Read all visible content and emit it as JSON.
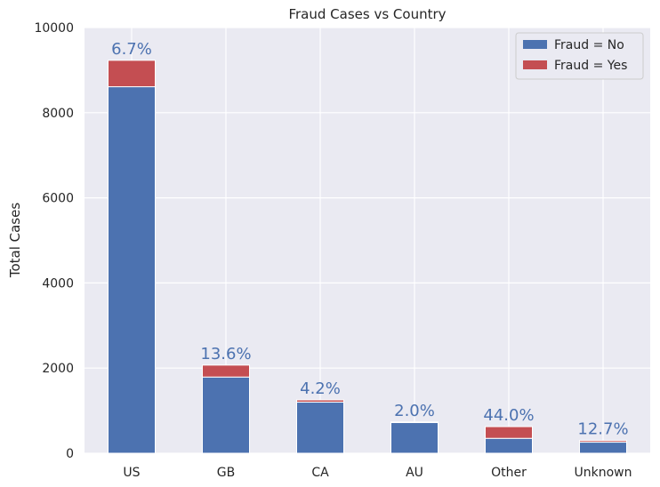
{
  "chart_data": {
    "type": "bar",
    "stacked": true,
    "title": "Fraud Cases vs Country",
    "xlabel": "",
    "ylabel": "Total Cases",
    "ylim": [
      0,
      10000
    ],
    "yticks": [
      "0",
      "2000",
      "4000",
      "6000",
      "8000",
      "10000"
    ],
    "categories": [
      "US",
      "GB",
      "CA",
      "AU",
      "Other",
      "Unknown"
    ],
    "series": [
      {
        "name": "Fraud = No",
        "color": "#4c72b0",
        "values": [
          8610,
          1790,
          1200,
          720,
          350,
          260
        ]
      },
      {
        "name": "Fraud = Yes",
        "color": "#c44e52",
        "values": [
          620,
          280,
          53,
          15,
          275,
          38
        ]
      }
    ],
    "data_labels": [
      "6.7%",
      "13.6%",
      "4.2%",
      "2.0%",
      "44.0%",
      "12.7%"
    ],
    "data_label_color": "#4c72b0",
    "grid": true,
    "legend": "top-right",
    "background": "#eaeaf2"
  }
}
